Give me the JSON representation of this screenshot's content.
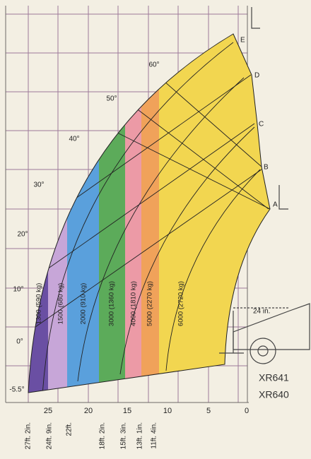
{
  "angles": [
    "60°",
    "50°",
    "40°",
    "30°",
    "20°",
    "10°",
    "0°",
    "-5.5°"
  ],
  "points": [
    "E",
    "D",
    "C",
    "B",
    "A"
  ],
  "zones": [
    "1300 (590 kg)",
    "1500 (680 kg)",
    "2000 (910 kg)",
    "3000 (1360 kg)",
    "4000 (1810 kg)",
    "5000 (2270 kg)",
    "6000 (2720 kg)"
  ],
  "axis_ticks": [
    "25",
    "20",
    "15",
    "10",
    "5",
    "0"
  ],
  "reach_labels": [
    "27ft. 2in.",
    "24ft. 9in.",
    "22ft.",
    "18ft. 2in.",
    "15ft. 3in.",
    "13ft. 1in.",
    "11ft. 4in."
  ],
  "clearance": "24 in.",
  "models": [
    "XR641",
    "XR640"
  ]
}
